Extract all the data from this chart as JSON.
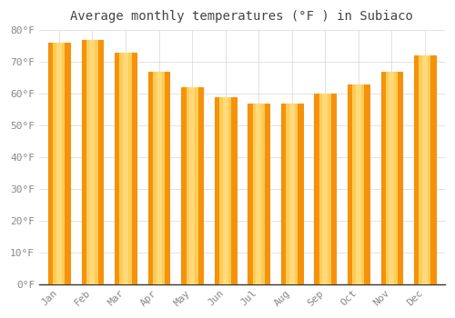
{
  "months": [
    "Jan",
    "Feb",
    "Mar",
    "Apr",
    "May",
    "Jun",
    "Jul",
    "Aug",
    "Sep",
    "Oct",
    "Nov",
    "Dec"
  ],
  "values": [
    76,
    77,
    73,
    67,
    62,
    59,
    57,
    57,
    60,
    63,
    67,
    72
  ],
  "bar_color_center": "#FFBB33",
  "bar_color_edge": "#F5920A",
  "title": "Average monthly temperatures (°F ) in Subiaco",
  "ylim": [
    0,
    80
  ],
  "yticks": [
    0,
    10,
    20,
    30,
    40,
    50,
    60,
    70,
    80
  ],
  "ytick_labels": [
    "0°F",
    "10°F",
    "20°F",
    "30°F",
    "40°F",
    "50°F",
    "60°F",
    "70°F",
    "80°F"
  ],
  "title_fontsize": 10,
  "tick_fontsize": 8,
  "background_color": "#FFFFFF",
  "grid_color": "#DDDDDD",
  "axis_color": "#AAAAAA",
  "text_color": "#888888"
}
